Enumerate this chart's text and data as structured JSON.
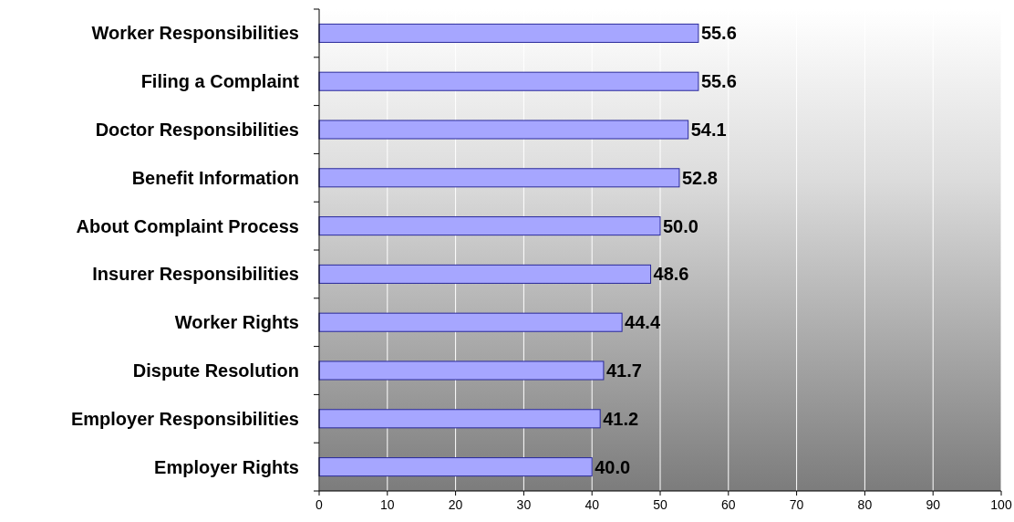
{
  "chart_data": {
    "type": "bar",
    "orientation": "horizontal",
    "categories": [
      "Worker Responsibilities",
      "Filing a Complaint",
      "Doctor Responsibilities",
      "Benefit Information",
      "About Complaint Process",
      "Insurer Responsibilities",
      "Worker Rights",
      "Dispute Resolution",
      "Employer Responsibilities",
      "Employer Rights"
    ],
    "values": [
      55.6,
      55.6,
      54.1,
      52.8,
      50.0,
      48.6,
      44.4,
      41.7,
      41.2,
      40.0
    ],
    "value_labels": [
      "55.6",
      "55.6",
      "54.1",
      "52.8",
      "50.0",
      "48.6",
      "44.4",
      "41.7",
      "41.2",
      "40.0"
    ],
    "color": "#a6a6ff",
    "xlim": [
      0,
      100
    ],
    "xticks": [
      0,
      10,
      20,
      30,
      40,
      50,
      60,
      70,
      80,
      90,
      100
    ],
    "grid": "x"
  }
}
